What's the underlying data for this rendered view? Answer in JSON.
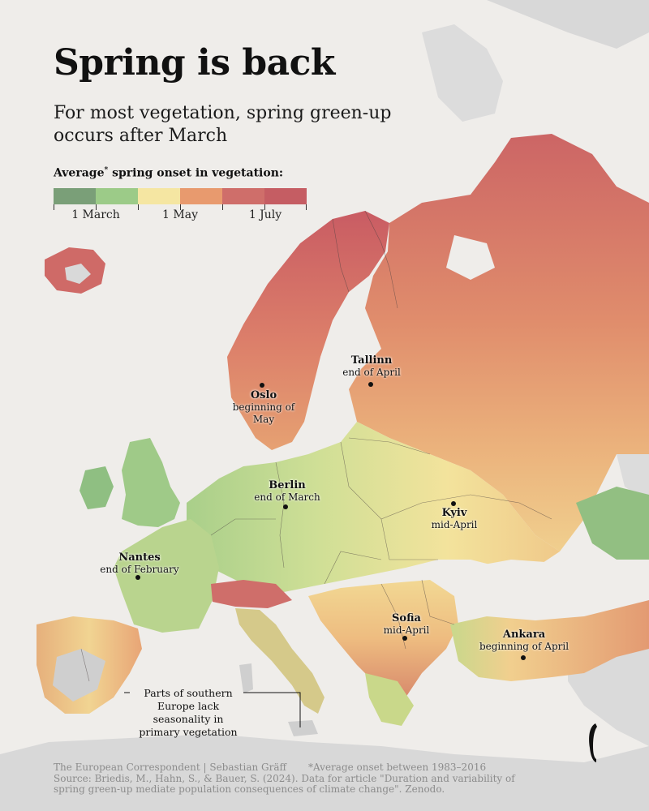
{
  "header": {
    "title": "Spring is back",
    "subtitle": "For most vegetation, spring green-up occurs after March"
  },
  "legend": {
    "title": "Average",
    "asterisk": "*",
    "title_rest": " spring onset in vegetation:",
    "colors": [
      "#7a9f78",
      "#9ccb88",
      "#f5e6a2",
      "#e89a6e",
      "#cf6e6a",
      "#c55d63"
    ],
    "labels": [
      "1 March",
      "1 May",
      "1 July"
    ]
  },
  "cities": [
    {
      "name": "Oslo",
      "label": "beginning of May"
    },
    {
      "name": "Tallinn",
      "label": "end of April"
    },
    {
      "name": "Berlin",
      "label": "end of March"
    },
    {
      "name": "Kyiv",
      "label": "mid-April"
    },
    {
      "name": "Nantes",
      "label": "end of February"
    },
    {
      "name": "Sofia",
      "label": "mid-April"
    },
    {
      "name": "Ankara",
      "label": "beginning of April"
    }
  ],
  "annotation": {
    "text": "Parts of southern Europe lack seasonality in primary vegetation"
  },
  "footer": {
    "credit": "The European Correspondent | Sebastian Gräff",
    "footnote": "*Average onset between 1983–2016",
    "source": "Source: Briedis, M., Hahn, S., & Bauer, S. (2024). Data for article \"Duration and variability of spring green-up mediate population consequences of climate change\". Zenodo."
  },
  "colors": {
    "background": "#efedea",
    "water_land_outside": "#d8d8d8",
    "green": "#9ccb88",
    "yellow": "#f5e6a2",
    "orange": "#e89a6e",
    "red": "#cf6e6a"
  },
  "logo": "european-correspondent-logo"
}
